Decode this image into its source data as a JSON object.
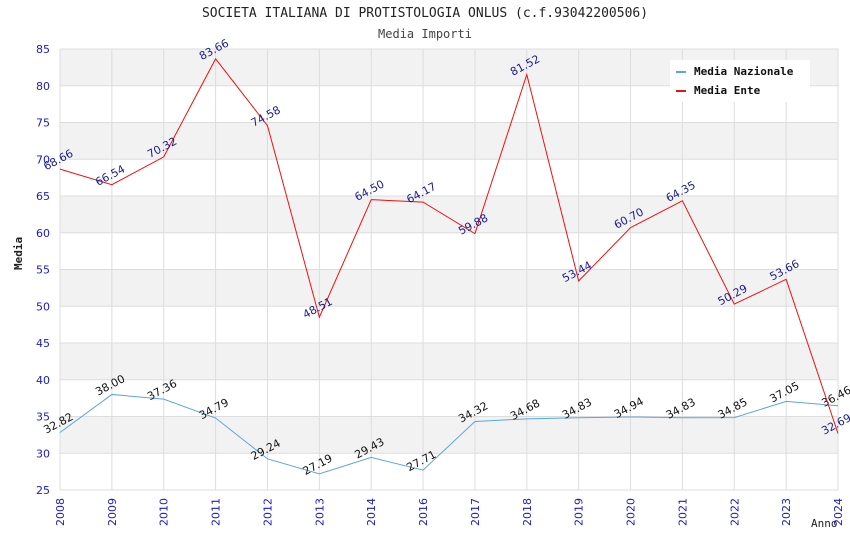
{
  "chart_data": {
    "type": "line",
    "title": "SOCIETA ITALIANA DI PROTISTOLOGIA ONLUS (c.f.93042200506)",
    "subtitle": "Media Importi",
    "xlabel": "Anno",
    "ylabel": "Media",
    "ylim": [
      25,
      85
    ],
    "yticks": [
      25,
      30,
      35,
      40,
      45,
      50,
      55,
      60,
      65,
      70,
      75,
      80,
      85
    ],
    "categories": [
      "2008",
      "2009",
      "2010",
      "2011",
      "2012",
      "2013",
      "2014",
      "2016",
      "2017",
      "2018",
      "2019",
      "2020",
      "2021",
      "2022",
      "2023",
      "2024"
    ],
    "grid": true,
    "legend_position": "top-right",
    "series": [
      {
        "name": "Media Nazionale",
        "color": "#5aa6e0",
        "label_color": "#111111",
        "values": [
          32.82,
          38.0,
          37.36,
          34.79,
          29.24,
          27.19,
          29.43,
          27.71,
          34.32,
          34.68,
          34.83,
          34.94,
          34.83,
          34.85,
          37.05,
          36.46
        ],
        "labels": [
          "32.82",
          "38.00",
          "37.36",
          "34.79",
          "29.24",
          "27.19",
          "29.43",
          "27.71",
          "34.32",
          "34.68",
          "34.83",
          "34.94",
          "34.83",
          "34.85",
          "37.05",
          "36.46"
        ]
      },
      {
        "name": "Media Ente",
        "color": "#ee1111",
        "label_color": "#1a1a8c",
        "values": [
          68.66,
          66.54,
          70.32,
          83.66,
          74.58,
          48.51,
          64.5,
          64.17,
          59.88,
          81.52,
          53.44,
          60.7,
          64.35,
          50.29,
          53.66,
          32.69
        ],
        "labels": [
          "68.66",
          "66.54",
          "70.32",
          "83.66",
          "74.58",
          "48.51",
          "64.50",
          "64.17",
          "59.88",
          "81.52",
          "53.44",
          "60.70",
          "64.35",
          "50.29",
          "53.66",
          "32.69"
        ]
      }
    ],
    "colors": {
      "band": "#f2f2f2",
      "grid": "#dddddd",
      "tick_label": "#1a1acc"
    }
  }
}
